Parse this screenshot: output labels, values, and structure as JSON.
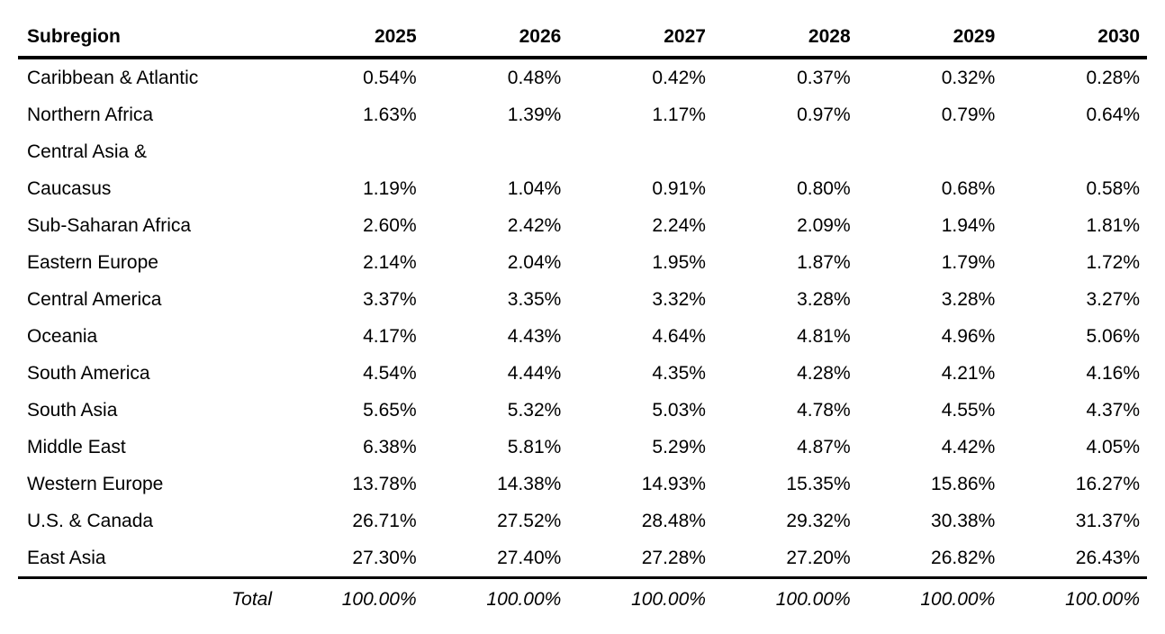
{
  "colors": {
    "background": "#ffffff",
    "text": "#000000",
    "rule": "#000000"
  },
  "table": {
    "columns": [
      "Subregion",
      "2025",
      "2026",
      "2027",
      "2028",
      "2029",
      "2030"
    ],
    "rows": [
      {
        "region": "Caribbean & Atlantic",
        "values": [
          "0.54%",
          "0.48%",
          "0.42%",
          "0.37%",
          "0.32%",
          "0.28%"
        ]
      },
      {
        "region": "Northern Africa",
        "values": [
          "1.63%",
          "1.39%",
          "1.17%",
          "0.97%",
          "0.79%",
          "0.64%"
        ]
      },
      {
        "region": "Central Asia &\nCaucasus",
        "values": [
          "1.19%",
          "1.04%",
          "0.91%",
          "0.80%",
          "0.68%",
          "0.58%"
        ]
      },
      {
        "region": "Sub-Saharan Africa",
        "values": [
          "2.60%",
          "2.42%",
          "2.24%",
          "2.09%",
          "1.94%",
          "1.81%"
        ]
      },
      {
        "region": "Eastern Europe",
        "values": [
          "2.14%",
          "2.04%",
          "1.95%",
          "1.87%",
          "1.79%",
          "1.72%"
        ]
      },
      {
        "region": "Central America",
        "values": [
          "3.37%",
          "3.35%",
          "3.32%",
          "3.28%",
          "3.28%",
          "3.27%"
        ]
      },
      {
        "region": "Oceania",
        "values": [
          "4.17%",
          "4.43%",
          "4.64%",
          "4.81%",
          "4.96%",
          "5.06%"
        ]
      },
      {
        "region": "South America",
        "values": [
          "4.54%",
          "4.44%",
          "4.35%",
          "4.28%",
          "4.21%",
          "4.16%"
        ]
      },
      {
        "region": "South Asia",
        "values": [
          "5.65%",
          "5.32%",
          "5.03%",
          "4.78%",
          "4.55%",
          "4.37%"
        ]
      },
      {
        "region": "Middle East",
        "values": [
          "6.38%",
          "5.81%",
          "5.29%",
          "4.87%",
          "4.42%",
          "4.05%"
        ]
      },
      {
        "region": "Western Europe",
        "values": [
          "13.78%",
          "14.38%",
          "14.93%",
          "15.35%",
          "15.86%",
          "16.27%"
        ]
      },
      {
        "region": "U.S. & Canada",
        "values": [
          "26.71%",
          "27.52%",
          "28.48%",
          "29.32%",
          "30.38%",
          "31.37%"
        ]
      },
      {
        "region": "East Asia",
        "values": [
          "27.30%",
          "27.40%",
          "27.28%",
          "27.20%",
          "26.82%",
          "26.43%"
        ]
      }
    ],
    "total": {
      "label": "Total",
      "values": [
        "100.00%",
        "100.00%",
        "100.00%",
        "100.00%",
        "100.00%",
        "100.00%"
      ]
    }
  },
  "chart_data": {
    "type": "table",
    "title": "",
    "units": "%",
    "columns": [
      "Subregion",
      "2025",
      "2026",
      "2027",
      "2028",
      "2029",
      "2030"
    ],
    "rows": [
      [
        "Caribbean & Atlantic",
        0.54,
        0.48,
        0.42,
        0.37,
        0.32,
        0.28
      ],
      [
        "Northern Africa",
        1.63,
        1.39,
        1.17,
        0.97,
        0.79,
        0.64
      ],
      [
        "Central Asia & Caucasus",
        1.19,
        1.04,
        0.91,
        0.8,
        0.68,
        0.58
      ],
      [
        "Sub-Saharan Africa",
        2.6,
        2.42,
        2.24,
        2.09,
        1.94,
        1.81
      ],
      [
        "Eastern Europe",
        2.14,
        2.04,
        1.95,
        1.87,
        1.79,
        1.72
      ],
      [
        "Central America",
        3.37,
        3.35,
        3.32,
        3.28,
        3.28,
        3.27
      ],
      [
        "Oceania",
        4.17,
        4.43,
        4.64,
        4.81,
        4.96,
        5.06
      ],
      [
        "South America",
        4.54,
        4.44,
        4.35,
        4.28,
        4.21,
        4.16
      ],
      [
        "South Asia",
        5.65,
        5.32,
        5.03,
        4.78,
        4.55,
        4.37
      ],
      [
        "Middle East",
        6.38,
        5.81,
        5.29,
        4.87,
        4.42,
        4.05
      ],
      [
        "Western Europe",
        13.78,
        14.38,
        14.93,
        15.35,
        15.86,
        16.27
      ],
      [
        "U.S. & Canada",
        26.71,
        27.52,
        28.48,
        29.32,
        30.38,
        31.37
      ],
      [
        "East Asia",
        27.3,
        27.4,
        27.28,
        27.2,
        26.82,
        26.43
      ]
    ],
    "total_row": [
      "Total",
      100.0,
      100.0,
      100.0,
      100.0,
      100.0,
      100.0
    ]
  }
}
